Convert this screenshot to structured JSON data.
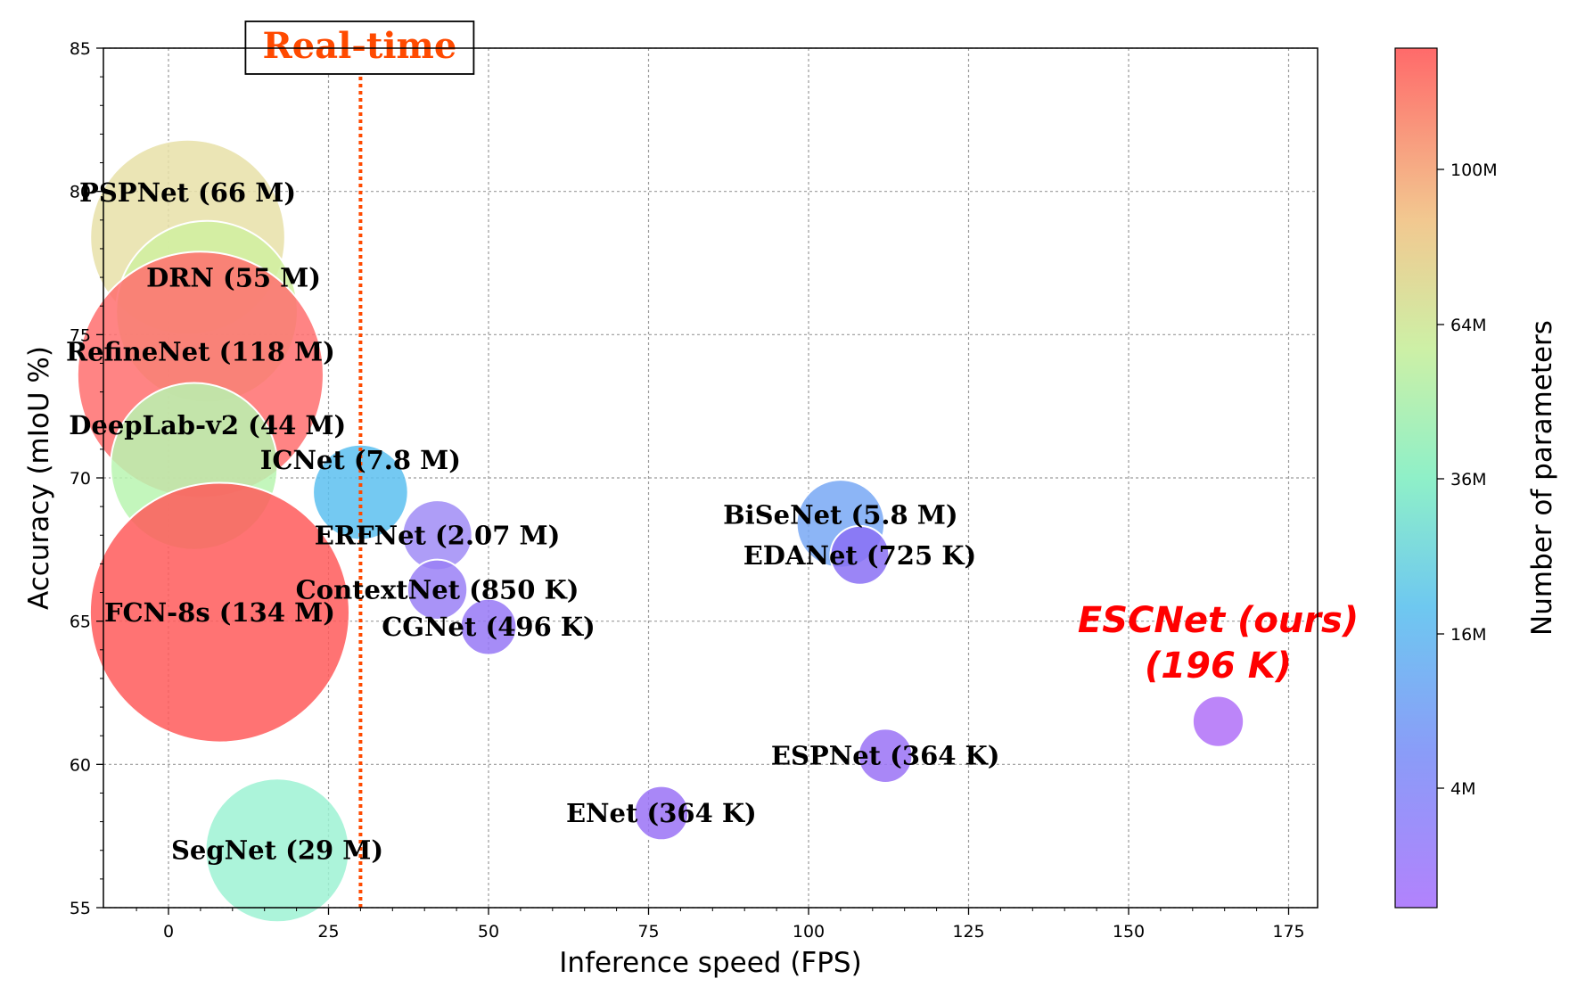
{
  "chart_data": {
    "type": "scatter",
    "xlabel": "Inference speed (FPS)",
    "ylabel": "Accuracy (mIoU %)",
    "xlim": [
      -10,
      180
    ],
    "ylim": [
      55,
      85
    ],
    "xticks": [
      0,
      25,
      50,
      75,
      100,
      125,
      150,
      175
    ],
    "yticks": [
      55,
      60,
      65,
      70,
      75,
      80,
      85
    ],
    "grid": true,
    "bubble_size": "number of parameters",
    "realtime_marker": {
      "label": "Real-time",
      "x": 30,
      "color": "#ff4a00"
    },
    "colorbar": {
      "label": "Number of parameters",
      "ticks": [
        "100M",
        "64M",
        "36M",
        "16M",
        "4M"
      ],
      "colormap": "rainbow"
    },
    "points": [
      {
        "name": "PSPNet (66 M)",
        "x": 3,
        "y": 78.4,
        "params_m": 66,
        "color": "#e8e0a8"
      },
      {
        "name": "DRN (55 M)",
        "x": 6,
        "y": 75.8,
        "params_m": 55,
        "color": "#d0f0a0"
      },
      {
        "name": "RefineNet (118 M)",
        "x": 5,
        "y": 73.6,
        "params_m": 118,
        "color": "#ff6e6e"
      },
      {
        "name": "DeepLab-v2 (44 M)",
        "x": 4,
        "y": 70.4,
        "params_m": 44,
        "color": "#b8f5b0"
      },
      {
        "name": "FCN-8s (134 M)",
        "x": 8,
        "y": 65.3,
        "params_m": 134,
        "color": "#ff5a5a"
      },
      {
        "name": "SegNet (29 M)",
        "x": 17,
        "y": 57.0,
        "params_m": 29,
        "color": "#9ef2d4"
      },
      {
        "name": "ICNet (7.8 M)",
        "x": 30,
        "y": 69.5,
        "params_m": 7.8,
        "color": "#5cbff0"
      },
      {
        "name": "ERFNet (2.07 M)",
        "x": 42,
        "y": 68.0,
        "params_m": 2.07,
        "color": "#a08cf6"
      },
      {
        "name": "ContextNet (850 K)",
        "x": 42,
        "y": 66.1,
        "params_m": 0.85,
        "color": "#9a80f6"
      },
      {
        "name": "CGNet (496 K)",
        "x": 50,
        "y": 64.8,
        "params_m": 0.496,
        "color": "#9778f6"
      },
      {
        "name": "BiSeNet (5.8 M)",
        "x": 105,
        "y": 68.4,
        "params_m": 5.8,
        "color": "#78a8f4"
      },
      {
        "name": "EDANet (725 K)",
        "x": 108,
        "y": 67.3,
        "params_m": 0.725,
        "color": "#8a70f4"
      },
      {
        "name": "ENet (364 K)",
        "x": 77,
        "y": 58.3,
        "params_m": 0.364,
        "color": "#9a72f6"
      },
      {
        "name": "ESPNet (364 K)",
        "x": 112,
        "y": 60.3,
        "params_m": 0.364,
        "color": "#9a72f6"
      },
      {
        "name": "ESCNet (ours)",
        "name_line2": "(196 K)",
        "x": 164,
        "y": 61.5,
        "params_m": 0.196,
        "color": "#b070f8",
        "highlight": true
      }
    ]
  }
}
